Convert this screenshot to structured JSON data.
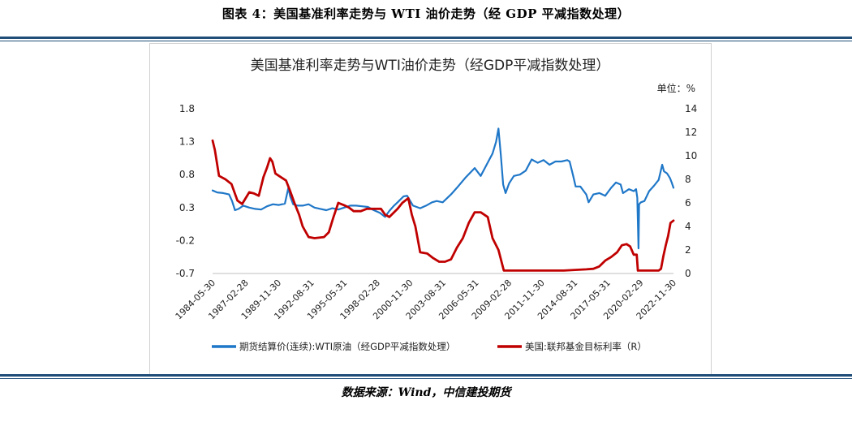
{
  "caption": "图表 4：美国基准利率走势与 WTI 油价走势（经 GDP 平减指数处理）",
  "source": "数据来源：Wind，中信建投期货",
  "chart_data": {
    "type": "line",
    "title": "美国基准利率走势与WTI油价走势（经GDP平减指数处理）",
    "unit_right": "单位：%",
    "x_ticks": [
      "1984-05-30",
      "1987-02-28",
      "1989-11-30",
      "1992-08-31",
      "1995-05-31",
      "1998-02-28",
      "2000-11-30",
      "2003-08-31",
      "2006-05-31",
      "2009-02-28",
      "2011-11-30",
      "2014-08-31",
      "2017-05-31",
      "2020-02-29",
      "2022-11-30"
    ],
    "x_range": [
      1984.41,
      2023.25
    ],
    "y_left": {
      "ticks": [
        "-0.7",
        "-0.2",
        "0.3",
        "0.8",
        "1.3",
        "1.8"
      ],
      "ylim": [
        -0.7,
        1.8
      ]
    },
    "y_right": {
      "ticks": [
        "0",
        "2",
        "4",
        "6",
        "8",
        "10",
        "12",
        "14"
      ],
      "ylim": [
        0,
        14
      ]
    },
    "grid": false,
    "legend_position": "bottom",
    "colors": {
      "oil": "#1f77c8",
      "rate": "#c00000"
    },
    "series": [
      {
        "name": "期货结算价(连续):WTI原油（经GDP平减指数处理）",
        "axis": "left",
        "x": [
          1984.41,
          1984.8,
          1985.3,
          1985.8,
          1986.05,
          1986.3,
          1986.6,
          1987.0,
          1987.5,
          1988.0,
          1988.5,
          1989.0,
          1989.5,
          1990.0,
          1990.5,
          1990.8,
          1990.95,
          1991.2,
          1991.6,
          1992.0,
          1992.5,
          1993.0,
          1993.5,
          1994.0,
          1994.5,
          1995.0,
          1995.5,
          1996.0,
          1996.5,
          1997.0,
          1997.5,
          1998.0,
          1998.5,
          1998.95,
          1999.3,
          1999.7,
          2000.0,
          2000.5,
          2000.8,
          2001.3,
          2001.9,
          2002.4,
          2002.9,
          2003.3,
          2003.8,
          2004.5,
          2005.0,
          2005.7,
          2006.5,
          2007.0,
          2007.5,
          2008.0,
          2008.3,
          2008.5,
          2008.7,
          2008.9,
          2009.1,
          2009.4,
          2009.8,
          2010.3,
          2010.8,
          2011.3,
          2011.8,
          2012.3,
          2012.8,
          2013.3,
          2013.8,
          2014.3,
          2014.5,
          2014.8,
          2015.0,
          2015.4,
          2015.9,
          2016.1,
          2016.5,
          2017.0,
          2017.5,
          2018.0,
          2018.4,
          2018.8,
          2019.0,
          2019.5,
          2019.9,
          2020.1,
          2020.2,
          2020.3,
          2020.35,
          2020.5,
          2020.8,
          2021.2,
          2021.6,
          2022.0,
          2022.3,
          2022.45,
          2022.7,
          2022.95,
          2023.1,
          2023.25
        ],
        "values": [
          0.56,
          0.53,
          0.52,
          0.5,
          0.4,
          0.26,
          0.28,
          0.33,
          0.3,
          0.28,
          0.27,
          0.32,
          0.35,
          0.34,
          0.36,
          0.6,
          0.47,
          0.35,
          0.33,
          0.33,
          0.35,
          0.3,
          0.28,
          0.26,
          0.29,
          0.27,
          0.3,
          0.33,
          0.33,
          0.32,
          0.31,
          0.26,
          0.22,
          0.16,
          0.25,
          0.33,
          0.38,
          0.47,
          0.48,
          0.33,
          0.29,
          0.33,
          0.38,
          0.4,
          0.38,
          0.5,
          0.6,
          0.75,
          0.9,
          0.78,
          0.95,
          1.12,
          1.3,
          1.5,
          1.1,
          0.65,
          0.52,
          0.67,
          0.78,
          0.8,
          0.86,
          1.03,
          0.98,
          1.02,
          0.95,
          1.0,
          1.0,
          1.02,
          1.0,
          0.78,
          0.62,
          0.62,
          0.5,
          0.38,
          0.5,
          0.52,
          0.48,
          0.6,
          0.68,
          0.65,
          0.52,
          0.58,
          0.55,
          0.58,
          0.45,
          -0.32,
          0.35,
          0.38,
          0.4,
          0.55,
          0.63,
          0.72,
          0.95,
          0.85,
          0.82,
          0.75,
          0.68,
          0.6
        ]
      },
      {
        "name": "美国:联邦基金目标利率（R）",
        "axis": "right",
        "x": [
          1984.41,
          1984.6,
          1984.95,
          1985.5,
          1986.0,
          1986.5,
          1986.9,
          1987.5,
          1987.9,
          1988.3,
          1988.7,
          1989.0,
          1989.25,
          1989.45,
          1989.7,
          1990.0,
          1990.3,
          1990.6,
          1990.95,
          1991.3,
          1991.7,
          1992.0,
          1992.5,
          1993.0,
          1993.8,
          1994.2,
          1994.6,
          1995.0,
          1995.5,
          1995.9,
          1996.3,
          1996.9,
          1997.4,
          1998.0,
          1998.6,
          1998.95,
          1999.3,
          1999.7,
          2000.0,
          2000.4,
          2000.9,
          2001.2,
          2001.5,
          2001.9,
          2002.5,
          2003.0,
          2003.5,
          2004.0,
          2004.5,
          2005.0,
          2005.5,
          2006.0,
          2006.5,
          2007.0,
          2007.6,
          2008.0,
          2008.5,
          2008.95,
          2010.0,
          2012.0,
          2014.0,
          2015.9,
          2016.5,
          2017.0,
          2017.5,
          2018.0,
          2018.5,
          2018.9,
          2019.3,
          2019.6,
          2019.9,
          2020.15,
          2020.25,
          2021.0,
          2022.0,
          2022.2,
          2022.4,
          2022.6,
          2022.8,
          2023.0,
          2023.25
        ],
        "values": [
          11.3,
          10.5,
          8.3,
          8.0,
          7.6,
          6.2,
          5.9,
          6.9,
          6.8,
          6.6,
          8.2,
          9.0,
          9.8,
          9.5,
          8.5,
          8.3,
          8.1,
          7.9,
          7.0,
          6.0,
          5.0,
          4.0,
          3.1,
          3.0,
          3.1,
          3.5,
          4.8,
          6.0,
          5.8,
          5.6,
          5.3,
          5.3,
          5.5,
          5.5,
          5.5,
          5.0,
          4.8,
          5.2,
          5.5,
          6.0,
          6.4,
          5.0,
          4.0,
          1.8,
          1.7,
          1.3,
          1.0,
          1.0,
          1.2,
          2.2,
          3.0,
          4.3,
          5.2,
          5.2,
          4.8,
          3.0,
          2.0,
          0.25,
          0.25,
          0.25,
          0.25,
          0.35,
          0.4,
          0.6,
          1.1,
          1.4,
          1.8,
          2.4,
          2.5,
          2.3,
          1.6,
          1.6,
          0.25,
          0.25,
          0.25,
          0.4,
          1.5,
          2.4,
          3.2,
          4.3,
          4.5
        ]
      }
    ]
  }
}
